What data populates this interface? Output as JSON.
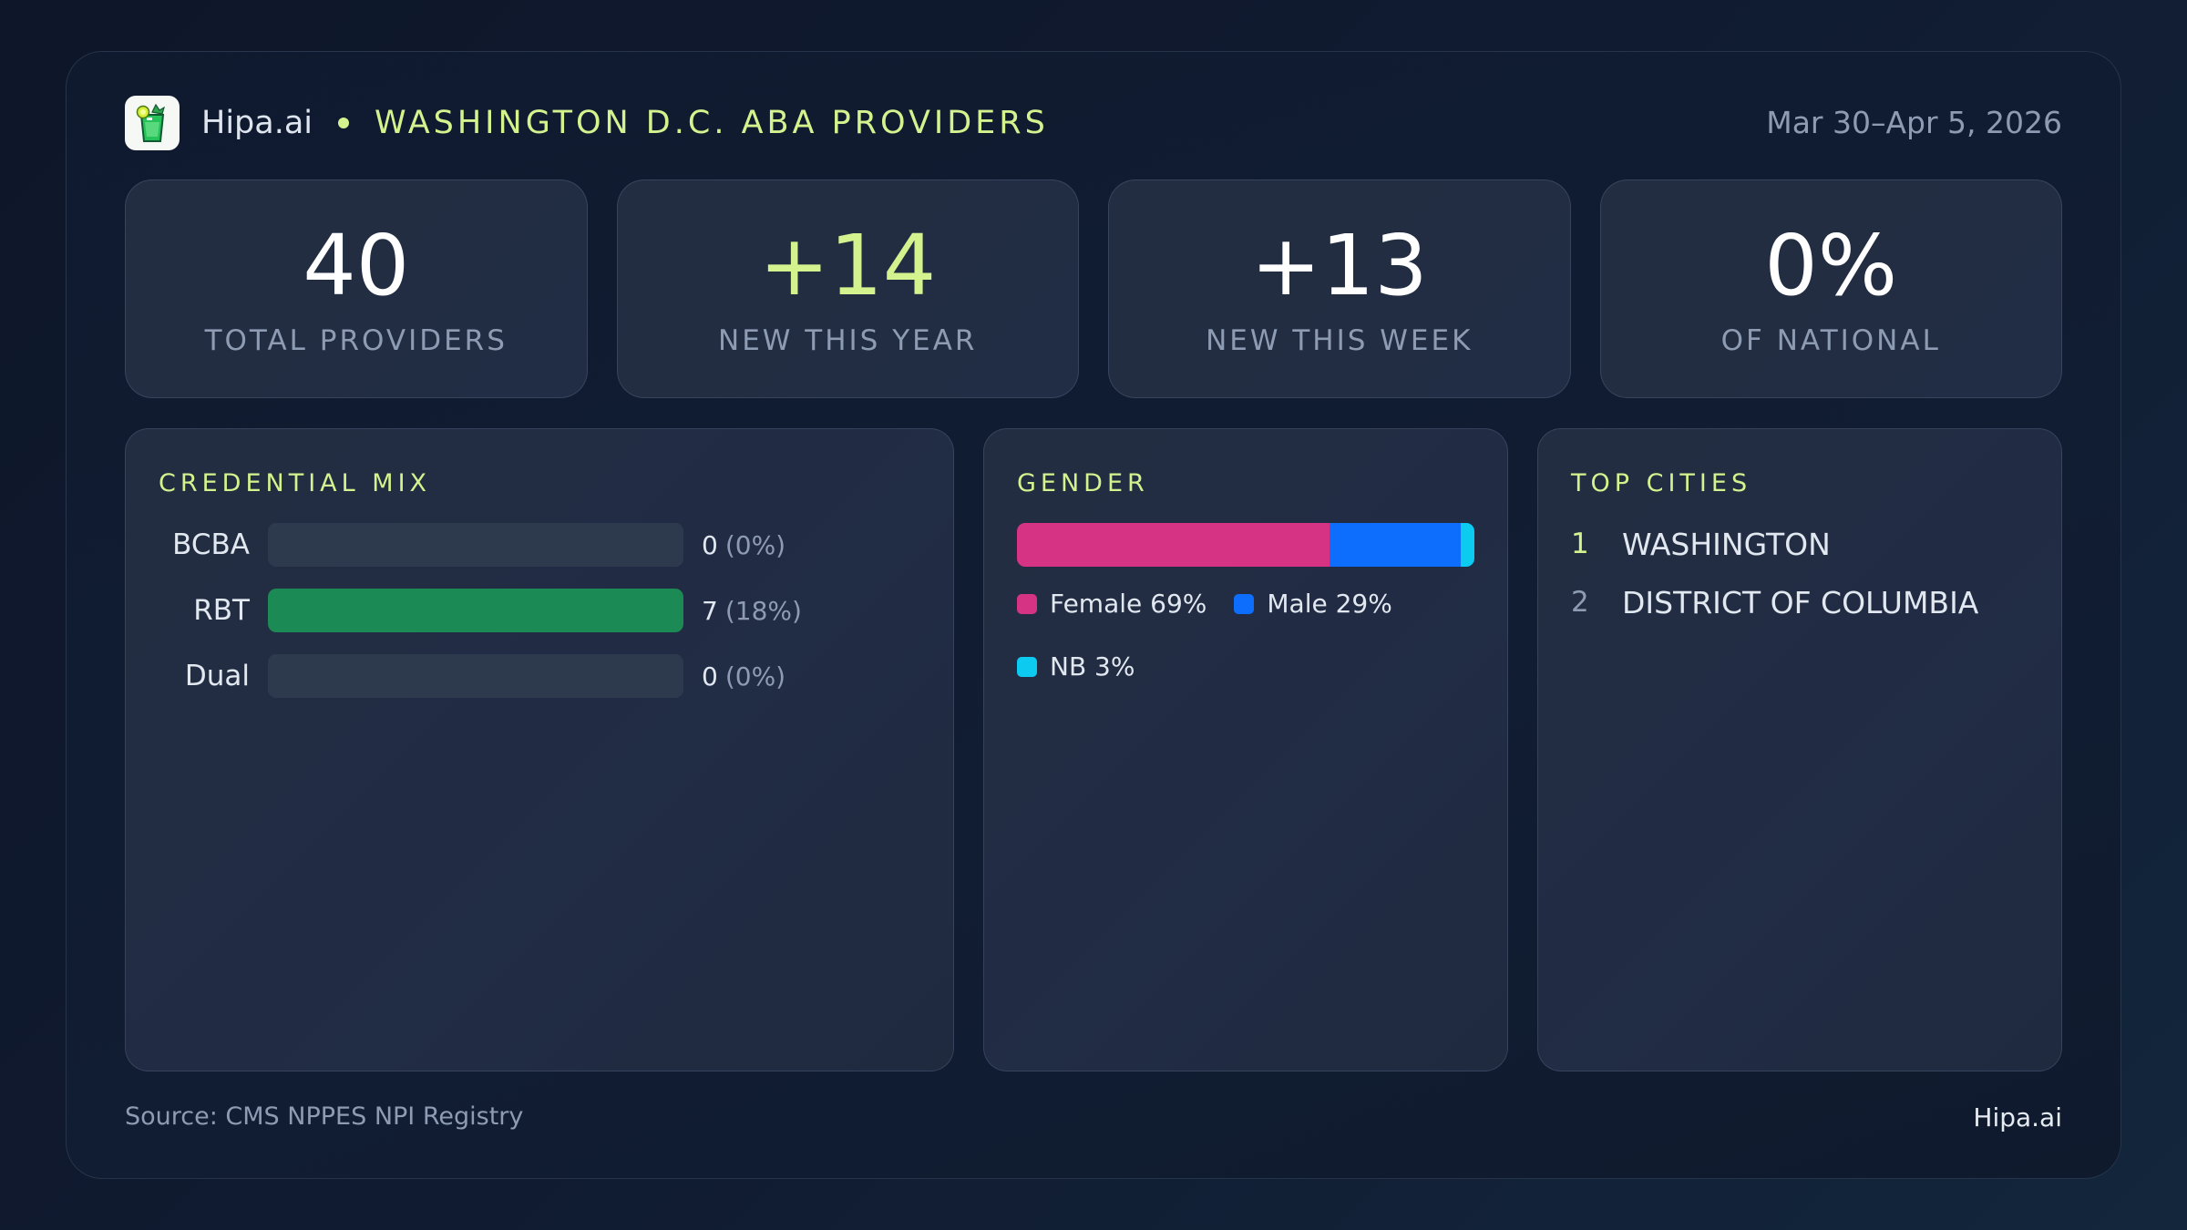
{
  "header": {
    "brand": "Hipa.ai",
    "title": "WASHINGTON D.C. ABA PROVIDERS",
    "date_range": "Mar 30–Apr 5, 2026",
    "logo_icon": "mojito-glass-icon"
  },
  "stats": [
    {
      "value": "40",
      "label": "TOTAL PROVIDERS"
    },
    {
      "value": "+14",
      "label": "NEW THIS YEAR"
    },
    {
      "value": "+13",
      "label": "NEW THIS WEEK"
    },
    {
      "value": "0%",
      "label": "OF NATIONAL"
    }
  ],
  "credential_mix": {
    "title": "CREDENTIAL MIX",
    "rows": [
      {
        "label": "BCBA",
        "count": "0",
        "pct": "(0%)",
        "fill": 0
      },
      {
        "label": "RBT",
        "count": "7",
        "pct": "(18%)",
        "fill": 100
      },
      {
        "label": "Dual",
        "count": "0",
        "pct": "(0%)",
        "fill": 0
      }
    ],
    "fill_color": "#1b8a55"
  },
  "gender": {
    "title": "GENDER",
    "segments": [
      {
        "label": "Female 69%",
        "name": "Female",
        "pct": 69,
        "color": "#d63384"
      },
      {
        "label": "Male 29%",
        "name": "Male",
        "pct": 29,
        "color": "#0d6efd"
      },
      {
        "label": "NB 3%",
        "name": "NB",
        "pct": 3,
        "color": "#0dcaf0"
      }
    ]
  },
  "top_cities": {
    "title": "TOP CITIES",
    "items": [
      {
        "rank": "1",
        "name": "WASHINGTON"
      },
      {
        "rank": "2",
        "name": "DISTRICT OF COLUMBIA"
      }
    ]
  },
  "footer": {
    "source": "Source: CMS NPPES NPI Registry",
    "brand": "Hipa.ai"
  },
  "colors": {
    "accent": "#d4f38e",
    "muted": "#8e9cb3",
    "background": "#0f1a2f",
    "card": "#222d41"
  }
}
